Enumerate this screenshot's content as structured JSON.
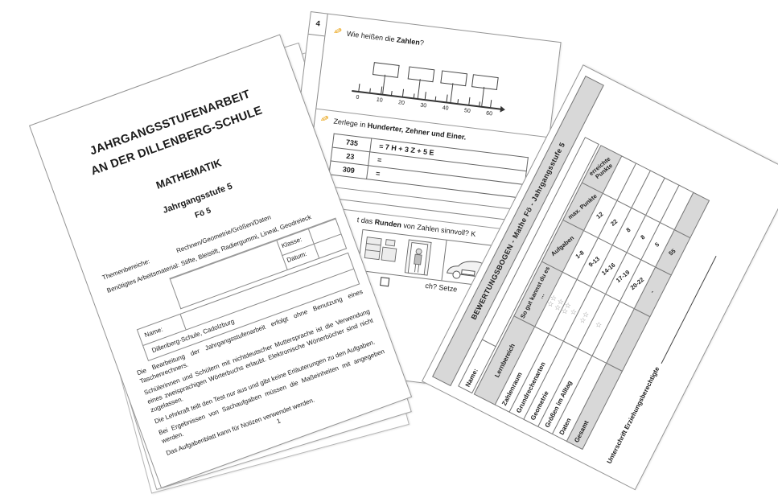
{
  "colors": {
    "band_gray": "#d8d8d8",
    "pencil_orange": "#e89c00"
  },
  "icons": {
    "pencil": "✎"
  },
  "left_page": {
    "title_line1": "JAHRGANGSSTUFENARBEIT",
    "title_line2": "AN DER DILLENBERG-SCHULE",
    "subject": "MATHEMATIK",
    "grade": "Jahrgangsstufe 5",
    "course": "Fö 5",
    "info": {
      "themes_label": "Themenbereiche:",
      "themes_value": "Rechnen/Geometrie/Größen/Daten",
      "material_label": "Benötigtes Arbeitsmaterial:",
      "material_value": "Stifte, Bleistift, Radiergummi, Lineal, Geodreieck",
      "class_label": "Klasse:",
      "date_label": "Datum:",
      "name_label": "Name:",
      "school": "Dillenberg-Schule, Cadolzburg"
    },
    "paragraphs": [
      "Die Bearbeitung der Jahrgangsstufenarbeit erfolgt ohne Benutzung eines Taschenrechners.",
      "Schülerinnen und Schülern mit nichtdeutscher Muttersprache ist die Verwendung eines zweisprachigen Wörterbuchs erlaubt. Elektronische Wörterbücher sind nicht zugelassen.",
      "Die Lehrkraft teilt den Test nur aus und gibt keine Erläuterungen zu den Aufgaben.",
      "Bei Ergebnissen von Sachaufgaben müssen die Maßeinheiten mit angegeben werden.",
      "Das Aufgabenblatt kann für Notizen verwendet werden."
    ],
    "page_number": "1"
  },
  "middle_page": {
    "page_number": "4",
    "task1": {
      "prefix": "Wie heißen die ",
      "bold": "Zahlen",
      "suffix": "?"
    },
    "number_line": {
      "tick_labels": [
        "0",
        "10",
        "20",
        "30",
        "40",
        "50",
        "60"
      ]
    },
    "task2": {
      "prefix": "Zerlege in ",
      "bold": "Hunderter, Zehner und Einer."
    },
    "decompose_table": [
      [
        "735",
        "= 7 H + 3 Z + 5 E"
      ],
      [
        "23",
        "="
      ],
      [
        "309",
        "="
      ]
    ],
    "task3_fragment": {
      "prefix": "t das ",
      "bold": "Runden",
      "suffix": " von Zahlen sinnvoll? K"
    },
    "fragment2": "ch? Setze"
  },
  "score_sheet": {
    "header": "BEWERTUNGSBOGEN  -  Mathe Fö  -  Jahrgangsstufe 5",
    "name_label": "Name:",
    "columns": [
      "Lernbereich",
      "So gut kannst du es ...",
      "Aufgaben",
      "max. Punkte",
      "erreichte Punkte"
    ],
    "rows": [
      {
        "label": "Zahlenraum",
        "stars": "☆☆\n☆☆",
        "tasks": "1-8",
        "max": "12",
        "achieved": ""
      },
      {
        "label": "Grundrechenarten",
        "stars": "☆☆\n☆",
        "tasks": "9-13",
        "max": "22",
        "achieved": ""
      },
      {
        "label": "Geometrie",
        "stars": "☆☆",
        "tasks": "14-16",
        "max": "8",
        "achieved": ""
      },
      {
        "label": "Größen im Alltag",
        "stars": "☆",
        "tasks": "17-19",
        "max": "8",
        "achieved": ""
      },
      {
        "label": "Daten",
        "stars": "",
        "tasks": "20-22",
        "max": "5",
        "achieved": ""
      },
      {
        "label": "Gesamt",
        "stars": "",
        "tasks": "-",
        "max": "55",
        "achieved": ""
      }
    ],
    "signature_label": "Unterschrift Erziehungsberechtigte"
  }
}
